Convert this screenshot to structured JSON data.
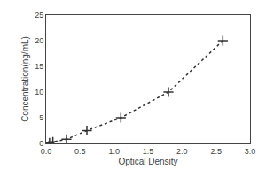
{
  "chart_data": {
    "type": "line",
    "x": [
      0.05,
      0.1,
      0.3,
      0.6,
      1.1,
      1.8,
      2.6
    ],
    "values": [
      0.1,
      0.3,
      0.8,
      2.5,
      5.0,
      10.0,
      20.0
    ],
    "xlabel": "Optical Density",
    "ylabel": "Concentration(ng/mL)",
    "xlim": [
      0,
      3
    ],
    "ylim": [
      0,
      25
    ],
    "xticks": [
      {
        "value": 0,
        "label": "0.0"
      },
      0.5,
      {
        "value": 1.0,
        "label": "1.0"
      },
      1.5,
      {
        "value": 2.0,
        "label": "2.0"
      },
      2.5,
      {
        "value": 3.0,
        "label": "3.0"
      }
    ],
    "yticks": [
      0,
      5,
      10,
      15,
      20,
      25
    ],
    "color": "#333333",
    "marker": "plus",
    "line_style": "dotted",
    "grid": false
  }
}
